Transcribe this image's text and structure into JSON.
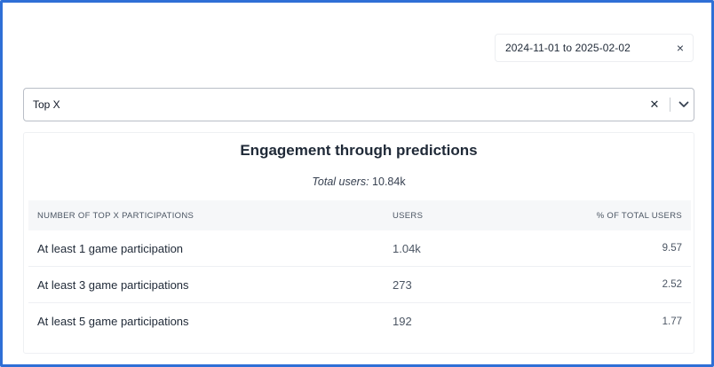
{
  "date_range": {
    "value": "2024-11-01 to 2025-02-02",
    "clear_icon": "×"
  },
  "select": {
    "value": "Top X",
    "clear_icon": "✕"
  },
  "card": {
    "title": "Engagement through predictions",
    "subtitle_label": "Total users:",
    "subtitle_value": "10.84k"
  },
  "table": {
    "headers": [
      "NUMBER OF TOP X PARTICIPATIONS",
      "USERS",
      "% OF TOTAL USERS"
    ],
    "rows": [
      [
        "At least 1 game participation",
        "1.04k",
        "9.57"
      ],
      [
        "At least 3 game participations",
        "273",
        "2.52"
      ],
      [
        "At least 5 game participations",
        "192",
        "1.77"
      ]
    ]
  }
}
